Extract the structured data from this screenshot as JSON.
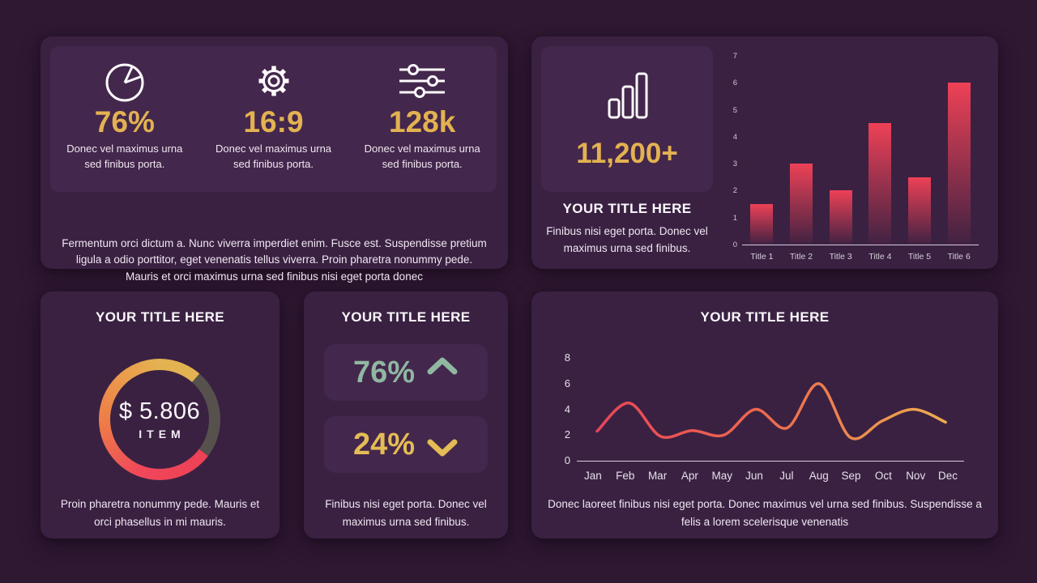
{
  "theme": {
    "page_bg": "#2f1832",
    "card_bg": "#3a2142",
    "tile_bg": "#44274c",
    "accent_gold": "#e3b251",
    "accent_teal": "#8fb7a2",
    "accent_red": "#ee4156",
    "accent_orange": "#ed7d47",
    "axis_color": "#d5ccd9"
  },
  "stats_card": {
    "items": [
      {
        "icon": "pie-chart-icon",
        "value": "76%",
        "caption": "Donec vel maximus urna sed finibus porta."
      },
      {
        "icon": "gear-icon",
        "value": "16:9",
        "caption": "Donec vel maximus urna sed finibus porta."
      },
      {
        "icon": "sliders-icon",
        "value": "128k",
        "caption": "Donec vel maximus urna sed finibus porta."
      }
    ],
    "paragraph": "Fermentum orci dictum a. Nunc viverra imperdiet enim. Fusce est. Suspendisse pretium ligula a odio porttitor, eget venenatis tellus viverra. Proin pharetra nonummy pede. Mauris et orci maximus urna sed finibus nisi eget porta donec"
  },
  "highlight_card": {
    "value": "11,200+",
    "title": "YOUR TITLE HERE",
    "caption": "Finibus nisi eget porta. Donec vel maximus urna sed finibus."
  },
  "donut_card": {
    "title": "YOUR TITLE HERE",
    "value_label": "$ 5.806",
    "unit_label": "ITEM",
    "caption": "Proin pharetra nonummy pede. Mauris et orci phasellus in mi mauris."
  },
  "kpi_card": {
    "title": "YOUR TITLE HERE",
    "up": {
      "value": "76%",
      "color": "#8fb7a2",
      "direction": "up"
    },
    "down": {
      "value": "24%",
      "color": "#e4bc55",
      "direction": "down"
    },
    "caption": "Finibus nisi eget porta. Donec vel maximus urna sed finibus."
  },
  "line_card": {
    "title": "YOUR TITLE HERE",
    "caption": "Donec laoreet finibus nisi eget porta. Donec maximus vel urna sed finibus. Suspendisse a felis a lorem scelerisque venenatis"
  },
  "chart_data": [
    {
      "id": "bar-chart",
      "type": "bar",
      "categories": [
        "Title 1",
        "Title 2",
        "Title 3",
        "Title 4",
        "Title 5",
        "Title 6"
      ],
      "values": [
        1.5,
        3,
        2,
        4.5,
        2.5,
        6
      ],
      "title": "",
      "xlabel": "",
      "ylabel": "",
      "ylim": [
        0,
        7
      ],
      "yticks": [
        0,
        1,
        2,
        3,
        4,
        5,
        6,
        7
      ],
      "grid": false,
      "legend": false,
      "bar_gradient": [
        "#ee4156",
        "rgba(238,65,86,0.04)"
      ]
    },
    {
      "id": "line-chart",
      "type": "line",
      "categories": [
        "Jan",
        "Feb",
        "Mar",
        "Apr",
        "May",
        "Jun",
        "Jul",
        "Aug",
        "Sep",
        "Oct",
        "Nov",
        "Dec"
      ],
      "values": [
        2.3,
        4.5,
        1.9,
        2.35,
        2.0,
        4.0,
        2.55,
        6.0,
        1.8,
        3.1,
        4.0,
        3.0
      ],
      "title": "YOUR TITLE HERE",
      "xlabel": "",
      "ylabel": "",
      "ylim": [
        0,
        8
      ],
      "yticks": [
        0,
        2,
        4,
        6,
        8
      ],
      "grid": false,
      "legend": false,
      "line_gradient": [
        "#e8415a",
        "#ed6a4e",
        "#ecb44e"
      ]
    },
    {
      "id": "donut-gauge",
      "type": "pie",
      "value_label": "$ 5.806",
      "unit_label": "ITEM",
      "colored_arc_deg": 274,
      "rest_color": "#56514d",
      "ring_stops": [
        [
          "#e3b251",
          0
        ],
        [
          "#e3b251",
          41
        ],
        [
          "#56514d",
          41
        ],
        [
          "#56514d",
          127
        ],
        [
          "#ee4156",
          127
        ],
        [
          "#f0475a",
          200
        ],
        [
          "#ed7d47",
          268
        ],
        [
          "#eaa24c",
          330
        ],
        [
          "#e3b251",
          360
        ]
      ]
    }
  ]
}
